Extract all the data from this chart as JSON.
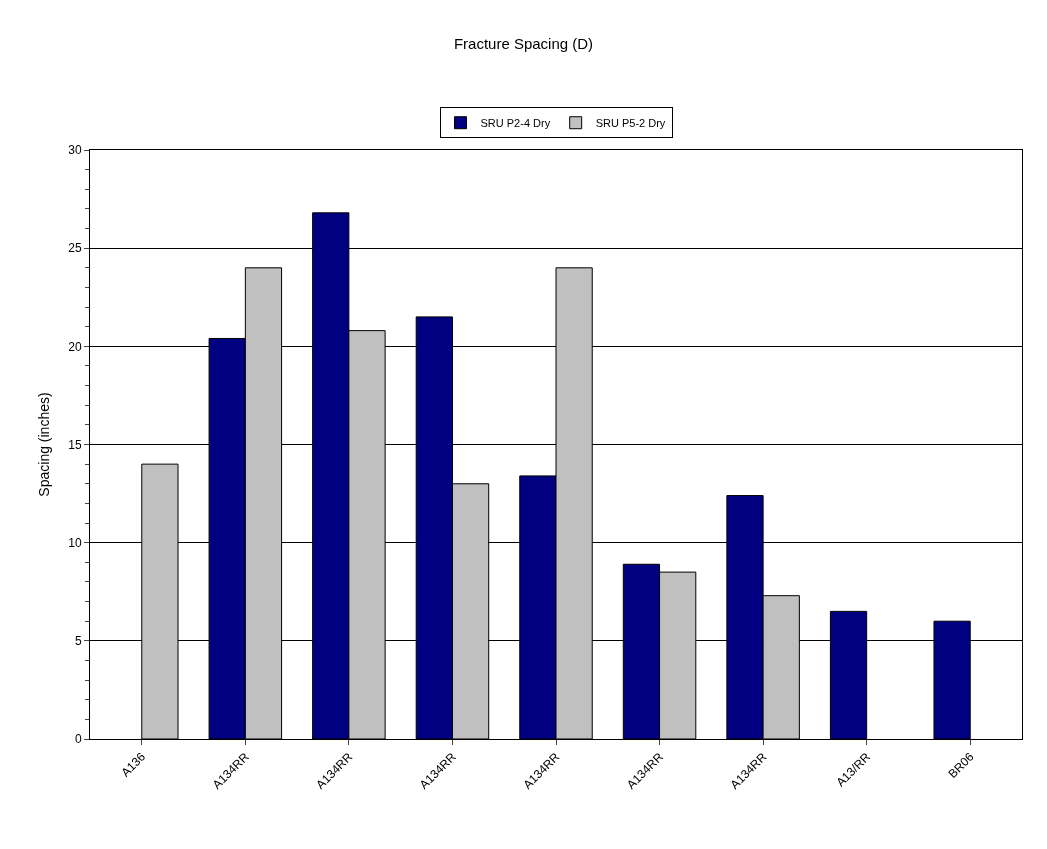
{
  "chart_data": {
    "type": "bar",
    "title": "Fracture Spacing (D)",
    "ylabel": "Spacing (inches)",
    "categories": [
      "A136",
      "A134RR",
      "A134RR",
      "A134RR",
      "A134RR",
      "A134RR",
      "A134RR",
      "A13/RR",
      "BR06"
    ],
    "series": [
      {
        "name": "SRU P2-4 Dry",
        "color": "#000080",
        "values": [
          null,
          20.4,
          26.8,
          21.5,
          13.4,
          8.9,
          12.4,
          6.5,
          6.0
        ]
      },
      {
        "name": "SRU P5-2 Dry",
        "color": "#c0c0c0",
        "values": [
          14.0,
          24.0,
          20.8,
          13.0,
          24.0,
          8.5,
          7.3,
          null,
          null
        ]
      }
    ],
    "ylim": [
      0,
      30
    ],
    "yticks": [
      0,
      5,
      10,
      15,
      20,
      25,
      30
    ],
    "grid": "y",
    "legend": "top"
  }
}
